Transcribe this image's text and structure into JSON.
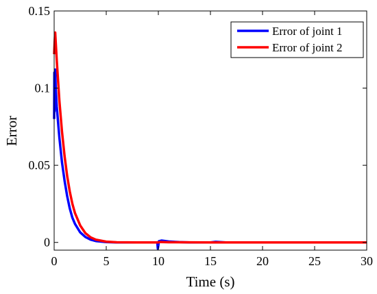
{
  "chart_data": {
    "type": "line",
    "title": "",
    "xlabel": "Time (s)",
    "ylabel": "Error",
    "xlim": [
      0,
      30
    ],
    "ylim": [
      -0.005,
      0.15
    ],
    "x_ticks": [
      0,
      5,
      10,
      15,
      20,
      25,
      30
    ],
    "x_tick_labels": [
      "0",
      "5",
      "10",
      "15",
      "20",
      "25",
      "30"
    ],
    "y_ticks": [
      0,
      0.05,
      0.1,
      0.15
    ],
    "y_tick_labels": [
      "0",
      "0.05",
      "0.1",
      "0.15"
    ],
    "grid": false,
    "legend_position": "top-right",
    "series": [
      {
        "name": "Error of joint 1",
        "color": "#0000ff",
        "points": [
          [
            0,
            0.08
          ],
          [
            0.02,
            0.11
          ],
          [
            0.04,
            0.085
          ],
          [
            0.06,
            0.105
          ],
          [
            0.08,
            0.09
          ],
          [
            0.1,
            0.112
          ],
          [
            0.15,
            0.1
          ],
          [
            0.25,
            0.088
          ],
          [
            0.5,
            0.068
          ],
          [
            0.75,
            0.052
          ],
          [
            1.0,
            0.04
          ],
          [
            1.25,
            0.03
          ],
          [
            1.5,
            0.022
          ],
          [
            1.75,
            0.016
          ],
          [
            2.0,
            0.012
          ],
          [
            2.5,
            0.0065
          ],
          [
            3.0,
            0.0035
          ],
          [
            3.5,
            0.0018
          ],
          [
            4.0,
            0.0009
          ],
          [
            5.0,
            0.0002
          ],
          [
            6.0,
            0.0
          ],
          [
            8.0,
            0.0
          ],
          [
            9.9,
            0.0
          ],
          [
            9.95,
            -0.004
          ],
          [
            10.0,
            -0.002
          ],
          [
            10.05,
            0.0008
          ],
          [
            10.3,
            0.0012
          ],
          [
            11.0,
            0.0006
          ],
          [
            12.0,
            0.0002
          ],
          [
            13.0,
            0.0
          ],
          [
            15.0,
            0.0
          ],
          [
            15.5,
            0.0004
          ],
          [
            16.5,
            0.0
          ],
          [
            20.0,
            0.0
          ],
          [
            25.0,
            0.0
          ],
          [
            30.0,
            0.0
          ]
        ]
      },
      {
        "name": "Error of joint 2",
        "color": "#ff0000",
        "points": [
          [
            0,
            0.122
          ],
          [
            0.05,
            0.13
          ],
          [
            0.1,
            0.136
          ],
          [
            0.15,
            0.13
          ],
          [
            0.25,
            0.118
          ],
          [
            0.5,
            0.092
          ],
          [
            0.75,
            0.072
          ],
          [
            1.0,
            0.056
          ],
          [
            1.25,
            0.043
          ],
          [
            1.5,
            0.033
          ],
          [
            1.75,
            0.025
          ],
          [
            2.0,
            0.019
          ],
          [
            2.5,
            0.011
          ],
          [
            3.0,
            0.006
          ],
          [
            3.5,
            0.0033
          ],
          [
            4.0,
            0.0018
          ],
          [
            5.0,
            0.0005
          ],
          [
            6.0,
            0.0001
          ],
          [
            8.0,
            0.0
          ],
          [
            10.0,
            0.0
          ],
          [
            10.2,
            0.0003
          ],
          [
            11.0,
            0.0001
          ],
          [
            15.0,
            0.0
          ],
          [
            20.0,
            0.0
          ],
          [
            25.0,
            0.0
          ],
          [
            30.0,
            0.0
          ]
        ]
      }
    ]
  }
}
